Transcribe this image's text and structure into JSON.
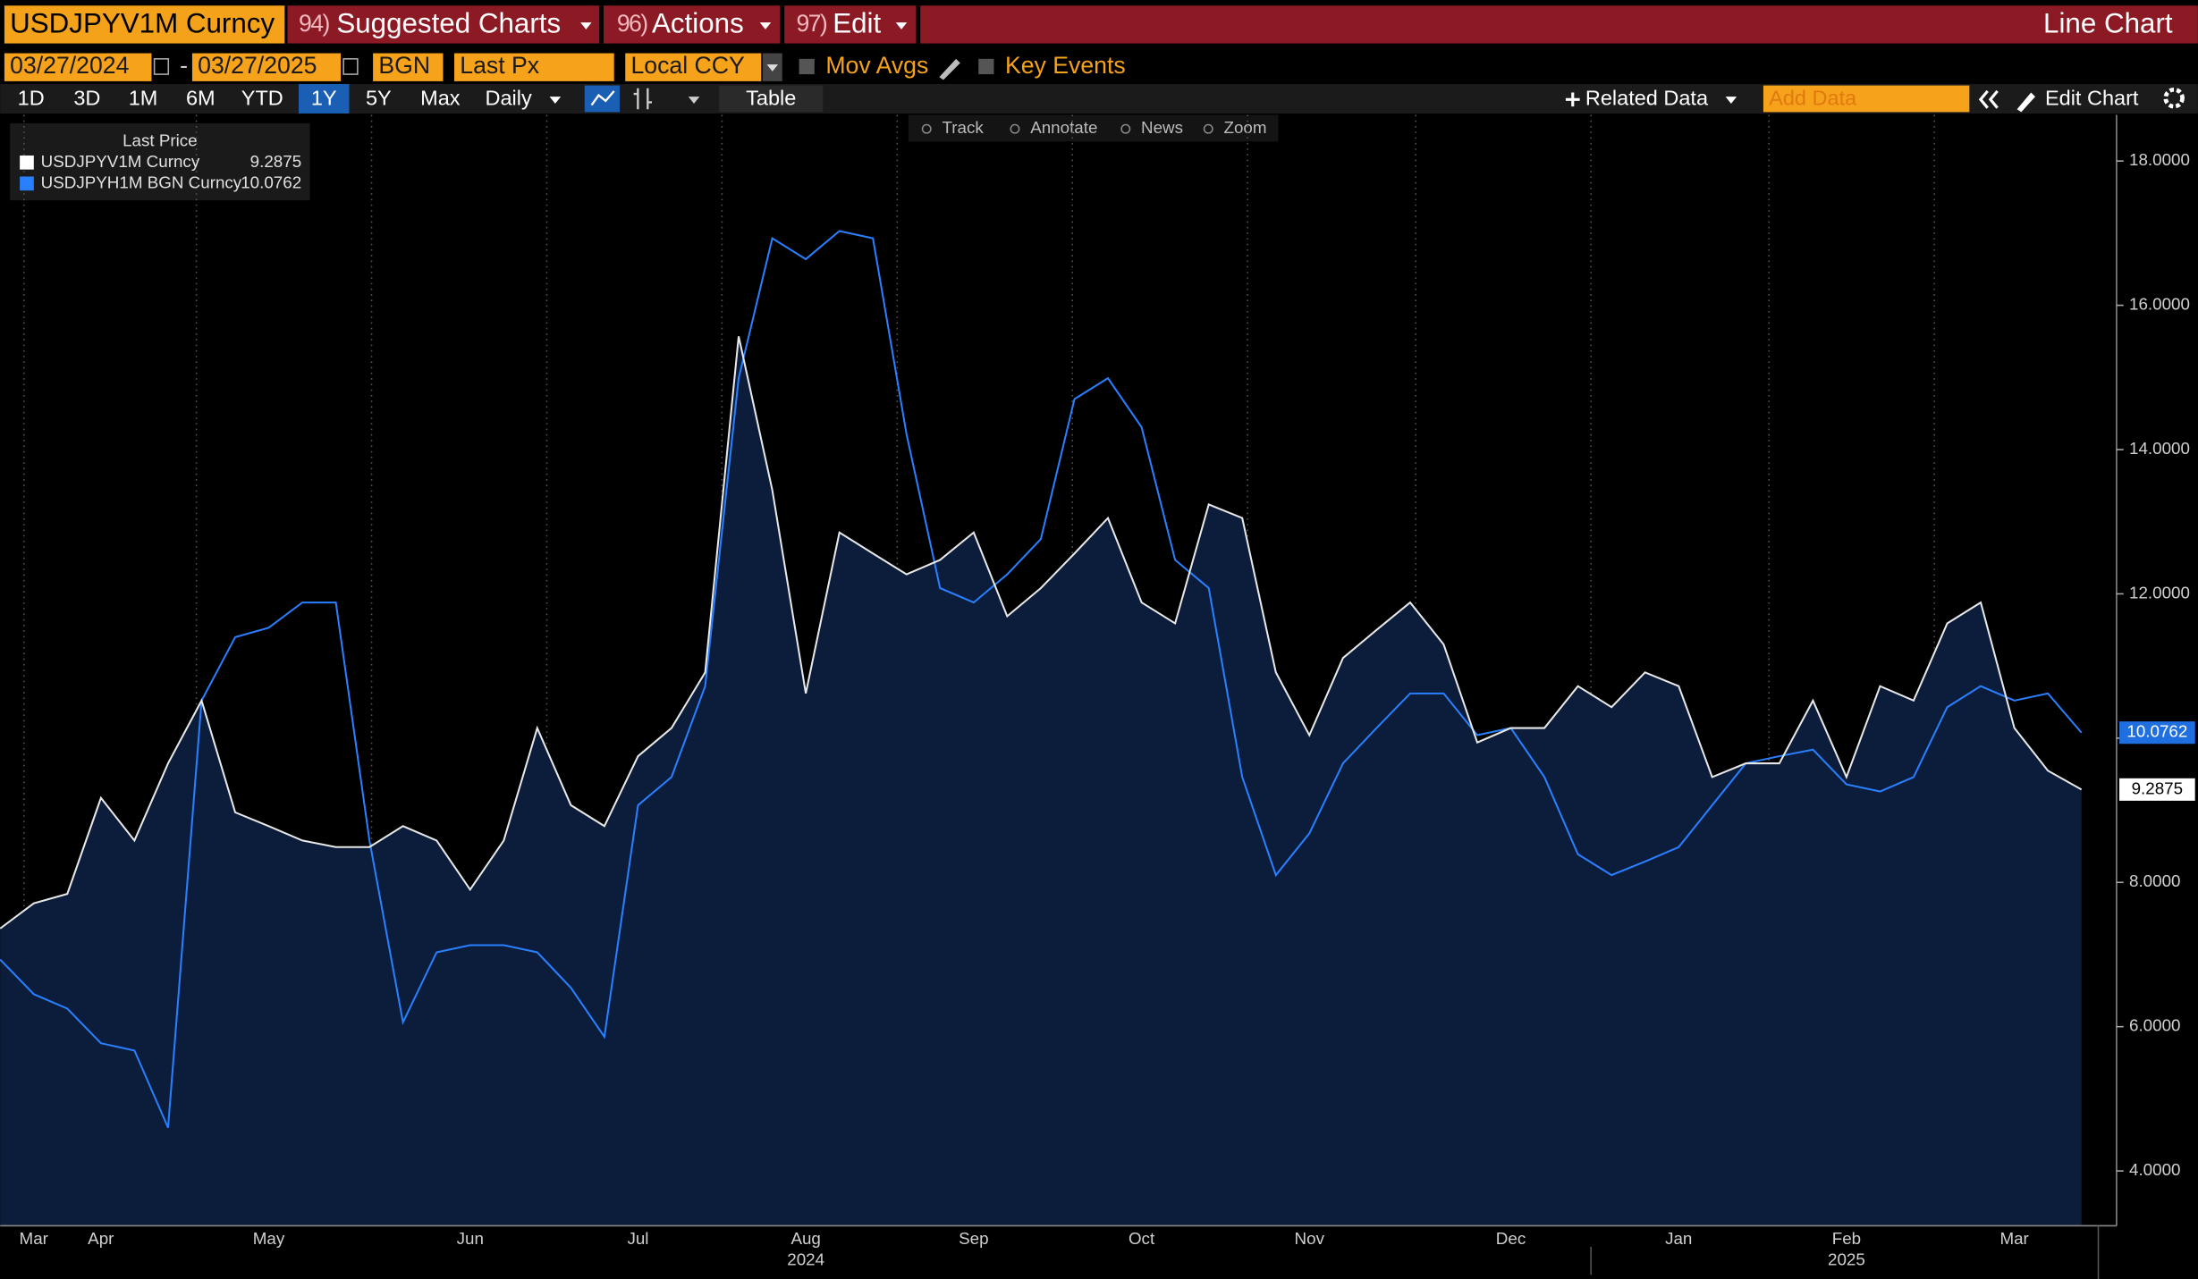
{
  "header": {
    "security": "USDJPYV1M Curncy",
    "menus": [
      {
        "num": "94)",
        "label": "Suggested Charts"
      },
      {
        "num": "96)",
        "label": "Actions"
      },
      {
        "num": "97)",
        "label": "Edit"
      }
    ],
    "view": "Line Chart"
  },
  "controls": {
    "start_date": "03/27/2024",
    "separator": "-",
    "end_date": "03/27/2025",
    "source": "BGN",
    "field": "Last Px",
    "currency": "Local CCY",
    "mov_avgs": "Mov Avgs",
    "key_events": "Key Events"
  },
  "periods": [
    "1D",
    "3D",
    "1M",
    "6M",
    "YTD",
    "1Y",
    "5Y",
    "Max"
  ],
  "selected_period": 5,
  "frequency": "Daily",
  "table": "Table",
  "related_data": "Related Data",
  "add_data": "Add Data",
  "edit_chart": "Edit Chart",
  "chart_tools": [
    "Track",
    "Annotate",
    "News",
    "Zoom"
  ],
  "chart_data": {
    "type": "line",
    "legend_title": "Last Price",
    "categories": [
      null,
      "Mar",
      null,
      "Apr",
      null,
      null,
      null,
      null,
      "May",
      null,
      null,
      null,
      null,
      null,
      "Jun",
      null,
      null,
      null,
      null,
      "Jul",
      null,
      null,
      null,
      null,
      "Aug",
      null,
      null,
      null,
      null,
      "Sep",
      null,
      null,
      null,
      null,
      "Oct",
      null,
      null,
      null,
      null,
      "Nov",
      null,
      null,
      null,
      null,
      null,
      "Dec",
      null,
      null,
      null,
      null,
      "Jan",
      null,
      null,
      null,
      null,
      "Feb",
      null,
      null,
      null,
      null,
      "Mar",
      null,
      null
    ],
    "category_years": [
      null,
      null,
      null,
      null,
      null,
      null,
      null,
      null,
      null,
      null,
      null,
      null,
      null,
      null,
      null,
      null,
      null,
      null,
      null,
      null,
      null,
      null,
      null,
      null,
      "2024",
      null,
      null,
      null,
      null,
      null,
      null,
      null,
      null,
      null,
      null,
      null,
      null,
      null,
      null,
      null,
      null,
      null,
      null,
      null,
      null,
      null,
      null,
      null,
      null,
      null,
      null,
      null,
      null,
      null,
      null,
      "2025",
      null,
      null,
      null,
      null,
      null,
      null,
      null
    ],
    "series": [
      {
        "name": "USDJPYV1M Curncy",
        "color": "#e8e8e8",
        "area": true,
        "fill": "#0b1d3a",
        "label_fill": "#ffffff",
        "label_color": "#000000",
        "values": [
          7.36,
          7.71,
          7.84,
          9.17,
          8.58,
          9.65,
          10.52,
          8.97,
          8.78,
          8.58,
          8.49,
          8.49,
          8.78,
          8.58,
          7.9,
          8.58,
          10.14,
          9.07,
          8.78,
          9.75,
          10.14,
          10.91,
          15.57,
          13.44,
          10.62,
          12.85,
          12.56,
          12.27,
          12.47,
          12.85,
          11.69,
          12.08,
          12.56,
          13.05,
          11.88,
          11.59,
          13.24,
          13.05,
          10.91,
          10.04,
          11.11,
          11.5,
          11.88,
          11.3,
          9.94,
          10.14,
          10.14,
          10.72,
          10.43,
          10.91,
          10.72,
          9.46,
          9.65,
          9.65,
          10.52,
          9.46,
          10.72,
          10.52,
          11.59,
          11.88,
          10.14,
          9.55,
          9.2875
        ]
      },
      {
        "name": "USDJPYH1M BGN Curncy",
        "color": "#2a7fff",
        "area": false,
        "label_fill": "#1f6fe0",
        "label_color": "#ffffff",
        "values": [
          6.93,
          6.45,
          6.25,
          5.77,
          5.67,
          4.6,
          10.52,
          11.4,
          11.53,
          11.88,
          11.88,
          8.58,
          6.06,
          7.03,
          7.13,
          7.13,
          7.03,
          6.54,
          5.86,
          9.07,
          9.46,
          10.72,
          14.99,
          16.93,
          16.64,
          17.03,
          16.93,
          14.21,
          12.08,
          11.88,
          12.27,
          12.76,
          14.7,
          14.99,
          14.31,
          12.47,
          12.08,
          9.46,
          8.1,
          8.68,
          9.65,
          10.14,
          10.62,
          10.62,
          10.04,
          10.14,
          9.46,
          8.39,
          8.1,
          8.29,
          8.49,
          9.07,
          9.65,
          9.75,
          9.84,
          9.36,
          9.26,
          9.46,
          10.43,
          10.72,
          10.52,
          10.62,
          10.0762
        ]
      }
    ],
    "ylim": [
      3.24,
      18.64
    ],
    "yticks": [
      {
        "value": 4,
        "label": "4.0000"
      },
      {
        "value": 6,
        "label": "6.0000"
      },
      {
        "value": 8,
        "label": "8.0000"
      },
      {
        "value": 10,
        "label": "10.0000"
      },
      {
        "value": 12,
        "label": "12.0000"
      },
      {
        "value": 14,
        "label": "14.0000"
      },
      {
        "value": 16,
        "label": "16.0000"
      },
      {
        "value": 18,
        "label": "18.0000"
      }
    ],
    "axis_side": "right",
    "grid": false
  }
}
